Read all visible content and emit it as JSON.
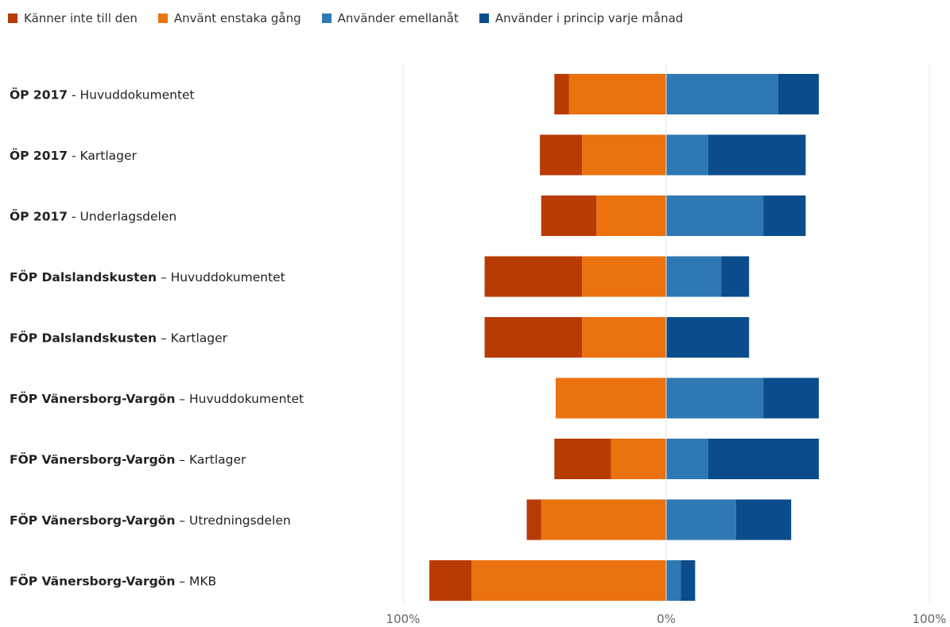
{
  "chart_data": {
    "type": "bar",
    "subtype": "diverging-stacked-horizontal",
    "title": "",
    "xlabel": "",
    "ylabel": "",
    "xlim": [
      -100,
      100
    ],
    "x_ticks": [
      "100%",
      "0%",
      "100%"
    ],
    "legend_position": "top-left",
    "grid": false,
    "series": [
      {
        "name": "Känner inte till den",
        "color": "#b83b04",
        "side": "negative"
      },
      {
        "name": "Använt enstaka gång",
        "color": "#eb720f",
        "side": "negative"
      },
      {
        "name": "Använder emellanåt",
        "color": "#2e78b4",
        "side": "positive"
      },
      {
        "name": "Använder i princip varje månad",
        "color": "#0b4c8c",
        "side": "positive"
      }
    ],
    "categories": [
      {
        "bold": "ÖP 2017",
        "rest": " - Huvuddokumentet",
        "values": [
          5.5,
          37,
          42.5,
          15.5
        ]
      },
      {
        "bold": "ÖP 2017",
        "rest": " - Kartlager",
        "values": [
          16,
          32,
          16,
          37
        ]
      },
      {
        "bold": "ÖP 2017",
        "rest": " - Underlagsdelen",
        "values": [
          21,
          26.5,
          37,
          16
        ]
      },
      {
        "bold": "FÖP Dalslandskusten",
        "rest": " – Huvuddokumentet",
        "values": [
          37,
          32,
          21,
          10.5
        ]
      },
      {
        "bold": "FÖP Dalslandskusten",
        "rest": " – Kartlager",
        "values": [
          37,
          32,
          0,
          31.5
        ]
      },
      {
        "bold": "FÖP Vänersborg-Vargön",
        "rest": " – Huvuddokumentet",
        "values": [
          0,
          42,
          37,
          21
        ]
      },
      {
        "bold": "FÖP Vänersborg-Vargön",
        "rest": " – Kartlager",
        "values": [
          21.5,
          21,
          16,
          42
        ]
      },
      {
        "bold": "FÖP Vänersborg-Vargön",
        "rest": " – Utredningsdelen",
        "values": [
          5.5,
          47.5,
          26.5,
          21
        ]
      },
      {
        "bold": "FÖP Vänersborg-Vargön",
        "rest": " – MKB",
        "values": [
          16,
          74,
          5.5,
          5.5
        ]
      }
    ]
  }
}
